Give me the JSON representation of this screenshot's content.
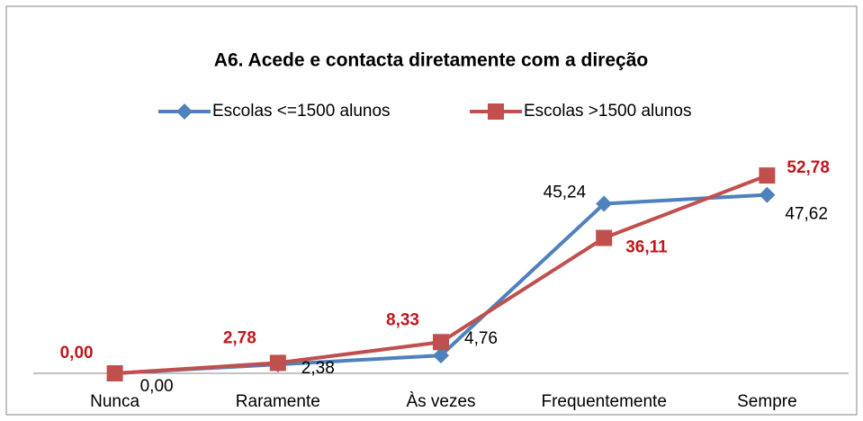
{
  "chart_data": {
    "type": "line",
    "title": "A6. Acede e contacta diretamente com a direção",
    "categories": [
      "Nunca",
      "Raramente",
      "Às vezes",
      "Frequentemente",
      "Sempre"
    ],
    "series": [
      {
        "name": "Escolas <=1500 alunos",
        "color": "#4f81bd",
        "marker": "diamond",
        "values": [
          0,
          2.38,
          4.76,
          45.24,
          47.62
        ],
        "value_labels": [
          "0,00",
          "2,38",
          "4,76",
          "45,24",
          "47,62"
        ]
      },
      {
        "name": "Escolas >1500 alunos",
        "color": "#c0504d",
        "marker": "square",
        "values": [
          0,
          2.78,
          8.33,
          36.11,
          52.78
        ],
        "value_labels": [
          "0,00",
          "2,78",
          "8,33",
          "36,11",
          "52,78"
        ]
      }
    ],
    "ylim": [
      0,
      60
    ],
    "legend": "top"
  }
}
